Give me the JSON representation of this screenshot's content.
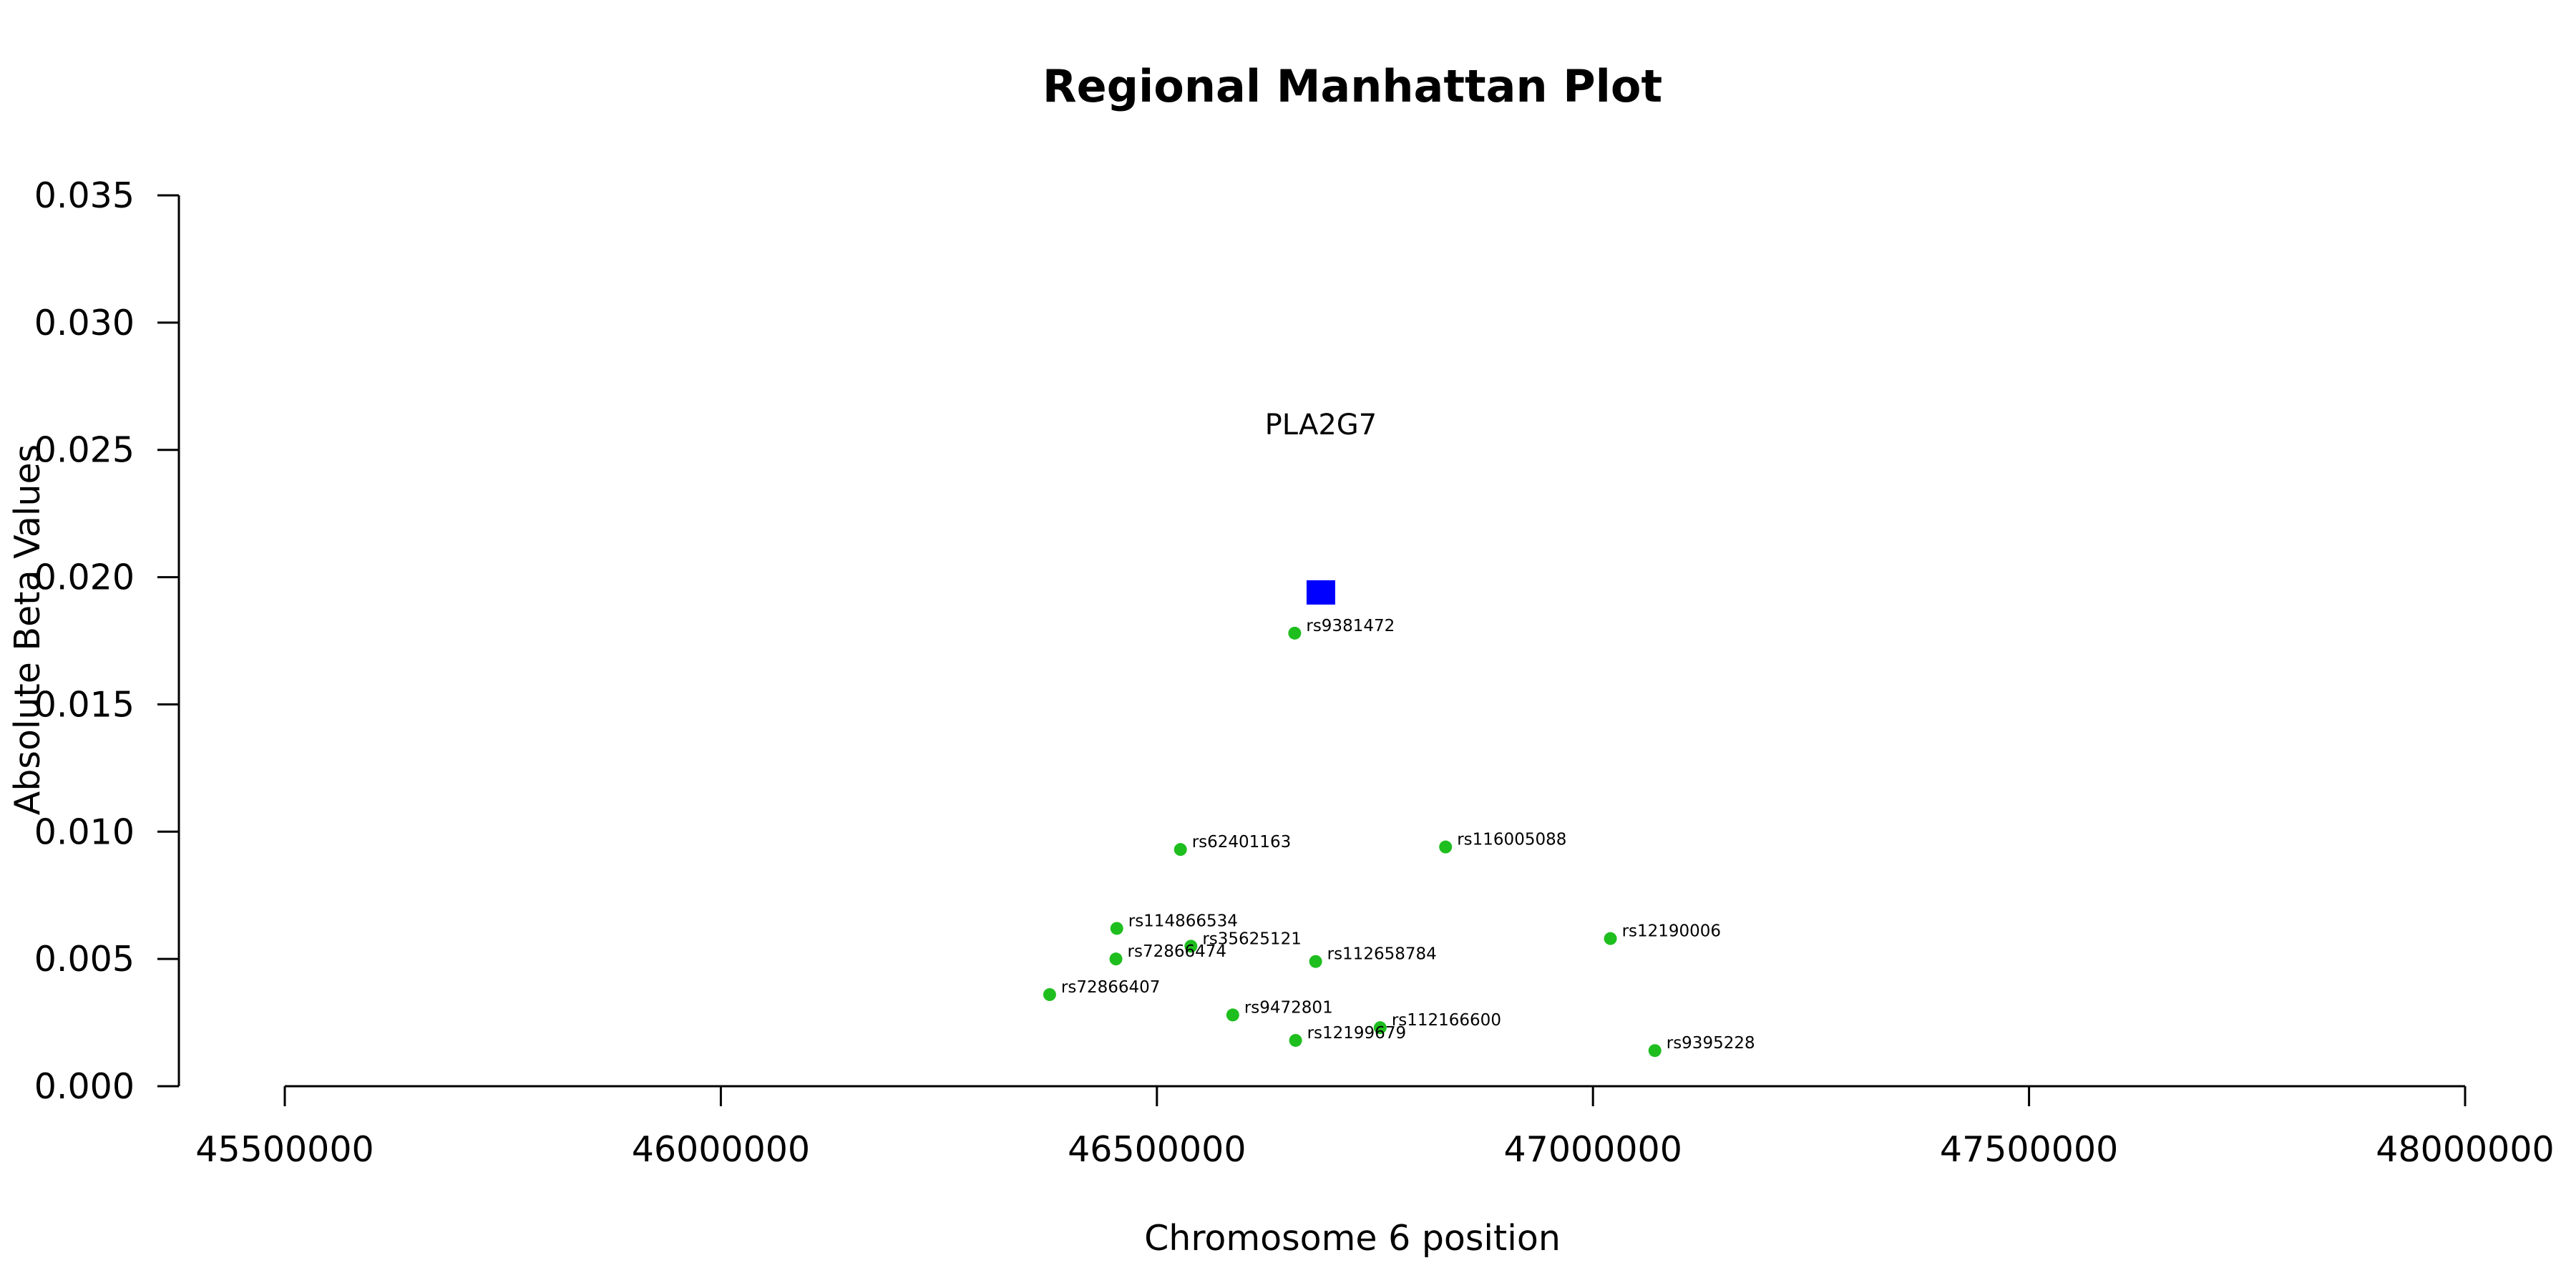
{
  "chart_data": {
    "type": "scatter",
    "title": "Regional Manhattan Plot",
    "xlabel": "Chromosome 6 position",
    "ylabel": "Absolute Beta Values",
    "xlim": [
      45500000,
      48000000
    ],
    "ylim": [
      0,
      0.035
    ],
    "x_ticks": [
      45500000,
      46000000,
      46500000,
      47000000,
      47500000,
      48000000
    ],
    "x_tick_labels": [
      "45500000",
      "46000000",
      "46500000",
      "47000000",
      "47500000",
      "48000000"
    ],
    "y_ticks": [
      0,
      0.005,
      0.01,
      0.015,
      0.02,
      0.025,
      0.03,
      0.035
    ],
    "y_tick_labels": [
      "0.000",
      "0.005",
      "0.010",
      "0.015",
      "0.020",
      "0.025",
      "0.030",
      "0.035"
    ],
    "grid": false,
    "gene": {
      "name": "PLA2G7",
      "x": 46688000,
      "y": 0.0194,
      "label_y": 0.026,
      "color": "#0000ff",
      "marker": "square"
    },
    "snp_color": "#1fbe1f",
    "points": [
      {
        "label": "rs9381472",
        "x": 46658000,
        "y": 0.0178
      },
      {
        "label": "rs62401163",
        "x": 46527000,
        "y": 0.0093
      },
      {
        "label": "rs116005088",
        "x": 46831000,
        "y": 0.0094
      },
      {
        "label": "rs114866534",
        "x": 46454000,
        "y": 0.0062
      },
      {
        "label": "rs35625121",
        "x": 46539000,
        "y": 0.0055
      },
      {
        "label": "rs72866474",
        "x": 46453000,
        "y": 0.005
      },
      {
        "label": "rs112658784",
        "x": 46682000,
        "y": 0.0049
      },
      {
        "label": "rs12190006",
        "x": 47020000,
        "y": 0.0058
      },
      {
        "label": "rs72866407",
        "x": 46377000,
        "y": 0.0036
      },
      {
        "label": "rs9472801",
        "x": 46587000,
        "y": 0.0028
      },
      {
        "label": "rs112166600",
        "x": 46756000,
        "y": 0.0023
      },
      {
        "label": "rs12199679",
        "x": 46659000,
        "y": 0.0018
      },
      {
        "label": "rs9395228",
        "x": 47071000,
        "y": 0.0014
      }
    ]
  }
}
